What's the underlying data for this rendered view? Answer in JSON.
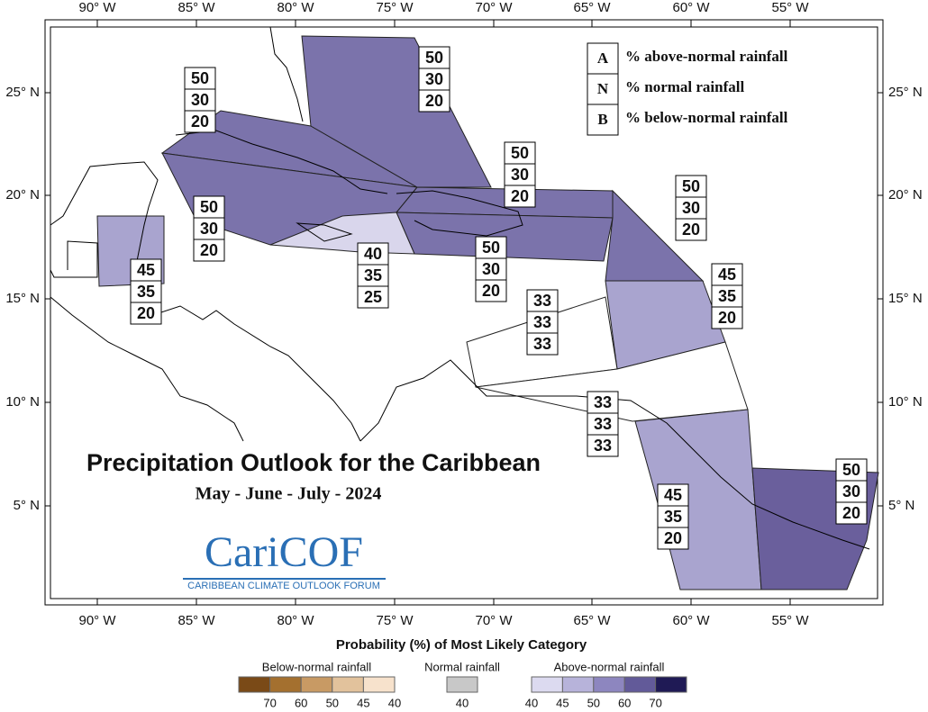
{
  "title": "Precipitation Outlook for the Caribbean",
  "subtitle": "May - June - July - 2024",
  "logo": {
    "name": "CariCOF",
    "tagline": "CARIBBEAN CLIMATE OUTLOOK FORUM"
  },
  "key": [
    {
      "letter": "A",
      "text": "% above-normal rainfall"
    },
    {
      "letter": "N",
      "text": "% normal rainfall"
    },
    {
      "letter": "B",
      "text": "% below-normal rainfall"
    }
  ],
  "longitude_labels": [
    "90° W",
    "85° W",
    "80° W",
    "75° W",
    "70° W",
    "65° W",
    "60° W",
    "55° W"
  ],
  "latitude_labels": [
    "25° N",
    "20° N",
    "15° N",
    "10° N",
    "5° N"
  ],
  "regions": [
    {
      "A": 50,
      "N": 30,
      "B": 20,
      "color": "#7b73ab"
    },
    {
      "A": 50,
      "N": 30,
      "B": 20,
      "color": "#7b73ab"
    },
    {
      "A": 50,
      "N": 30,
      "B": 20,
      "color": "#7b73ab"
    },
    {
      "A": 50,
      "N": 30,
      "B": 20,
      "color": "#7b73ab"
    },
    {
      "A": 50,
      "N": 30,
      "B": 20,
      "color": "#7b73ab"
    },
    {
      "A": 50,
      "N": 30,
      "B": 20,
      "color": "#7b73ab"
    },
    {
      "A": 40,
      "N": 35,
      "B": 25,
      "color": "#d9d6ec"
    },
    {
      "A": 45,
      "N": 35,
      "B": 20,
      "color": "#a9a4cf"
    },
    {
      "A": 45,
      "N": 35,
      "B": 20,
      "color": "#a9a4cf"
    },
    {
      "A": 33,
      "N": 33,
      "B": 33,
      "color": "#ffffff"
    },
    {
      "A": 33,
      "N": 33,
      "B": 33,
      "color": "#ffffff"
    },
    {
      "A": 45,
      "N": 35,
      "B": 20,
      "color": "#a9a4cf"
    },
    {
      "A": 50,
      "N": 30,
      "B": 20,
      "color": "#6a5f9c"
    }
  ],
  "legend": {
    "title": "Probability (%) of Most Likely Category",
    "groups": [
      {
        "name": "Below-normal rainfall",
        "colors": [
          "#7a4a17",
          "#a4702f",
          "#c89a64",
          "#e2c29c",
          "#f7e2cc"
        ],
        "ticks": [
          70,
          60,
          50,
          45,
          40
        ]
      },
      {
        "name": "Normal rainfall",
        "colors": [
          "#c8c8c8"
        ],
        "ticks": [
          40
        ]
      },
      {
        "name": "Above-normal rainfall",
        "colors": [
          "#dcdaf0",
          "#b7b3da",
          "#8d86bf",
          "#625a99",
          "#1f1a55"
        ],
        "ticks": [
          40,
          45,
          50,
          60,
          70
        ]
      }
    ]
  }
}
